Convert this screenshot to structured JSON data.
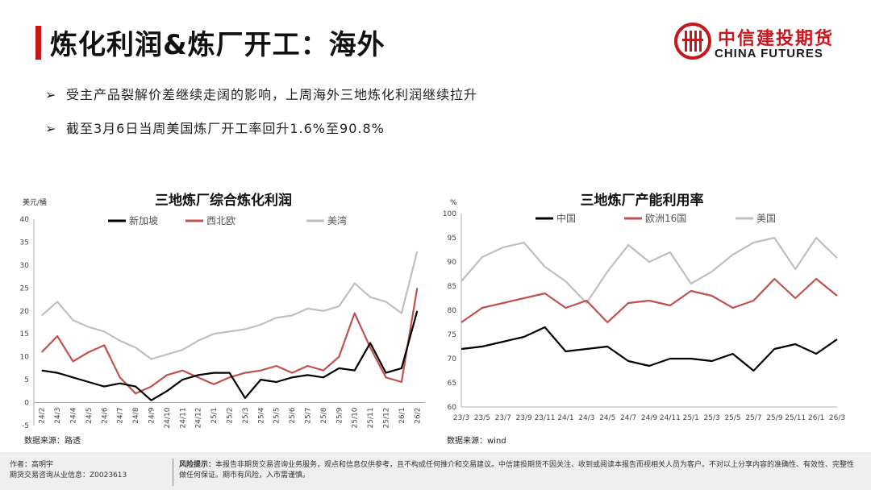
{
  "page": {
    "title": "炼化利润&炼厂开工：海外",
    "bullets": [
      "受主产品裂解价差继续走阔的影响，上周海外三地炼化利润继续拉升",
      "截至3月6日当周美国炼厂开工率回升1.6%至90.8%"
    ],
    "bullet_marker": "➢"
  },
  "logo": {
    "cn": "中信建投期货",
    "en": "CHINA FUTURES"
  },
  "footer": {
    "author": "作者：高明宇",
    "license": "期货交易咨询从业信息：Z0023613",
    "risk_label": "风险提示：",
    "risk_text": "本报告非期货交易咨询业务服务，观点和信息仅供参考，且不构成任何推介和交易建议。中信建投期货不因关注、收到或阅读本报告而视相关人员为客户。不对以上分享内容的准确性、有效性、完整性做任何保证。期市有风险，入市需谨慎。"
  },
  "colors": {
    "accent": "#c8161d",
    "black_series": "#000000",
    "red_series": "#c0504d",
    "gray_series": "#bfbfbf"
  },
  "chart_data": [
    {
      "type": "line",
      "title": "三地炼厂综合炼化利润",
      "ylabel": "美元/桶",
      "ylim": [
        -5,
        40
      ],
      "yticks": [
        -5,
        0,
        5,
        10,
        15,
        20,
        25,
        30,
        35,
        40
      ],
      "xlabels": [
        "24/2",
        "24/3",
        "24/4",
        "24/5",
        "24/6",
        "24/7",
        "24/8",
        "24/9",
        "24/10",
        "24/11",
        "24/12",
        "25/1",
        "25/2",
        "25/3",
        "25/4",
        "25/5",
        "25/6",
        "25/7",
        "25/8",
        "25/9",
        "25/10",
        "25/11",
        "25/12",
        "26/1",
        "26/2"
      ],
      "source": "数据来源：路透",
      "series": [
        {
          "name": "新加坡",
          "color": "#000000",
          "values": [
            7.0,
            6.5,
            5.5,
            4.5,
            3.5,
            4.2,
            3.5,
            0.5,
            2.5,
            5.0,
            6.0,
            6.5,
            6.5,
            1.0,
            5.0,
            4.5,
            5.5,
            6.0,
            5.5,
            7.5,
            7.0,
            13.0,
            6.5,
            7.5,
            20.0
          ]
        },
        {
          "name": "西北欧",
          "color": "#c0504d",
          "values": [
            11.0,
            14.5,
            9.0,
            11.0,
            12.5,
            5.5,
            2.0,
            3.5,
            6.0,
            7.0,
            5.5,
            4.0,
            5.5,
            6.5,
            7.0,
            8.0,
            6.5,
            8.0,
            7.0,
            10.0,
            19.5,
            12.0,
            5.5,
            4.5,
            25.0
          ]
        },
        {
          "name": "美湾",
          "color": "#bfbfbf",
          "values": [
            19.0,
            22.0,
            18.0,
            16.5,
            15.5,
            13.5,
            12.0,
            9.5,
            10.5,
            11.5,
            13.5,
            15.0,
            15.5,
            16.0,
            17.0,
            18.5,
            19.0,
            20.5,
            20.0,
            21.0,
            26.0,
            23.0,
            22.0,
            19.5,
            33.0
          ]
        }
      ]
    },
    {
      "type": "line",
      "title": "三地炼厂产能利用率",
      "ylabel": "%",
      "ylim": [
        60,
        100
      ],
      "yticks": [
        60,
        65,
        70,
        75,
        80,
        85,
        90,
        95,
        100
      ],
      "xlabels": [
        "23/3",
        "23/5",
        "23/7",
        "23/9",
        "23/11",
        "24/1",
        "24/3",
        "24/5",
        "24/7",
        "24/9",
        "24/11",
        "25/1",
        "25/3",
        "25/5",
        "25/7",
        "25/9",
        "25/11",
        "26/1",
        "26/3"
      ],
      "source": "数据来源：wind",
      "series": [
        {
          "name": "中国",
          "color": "#000000",
          "values": [
            72.0,
            72.5,
            73.5,
            74.5,
            76.5,
            71.5,
            72.0,
            72.5,
            69.5,
            68.5,
            70.0,
            70.0,
            69.5,
            71.0,
            67.5,
            72.0,
            73.0,
            71.0,
            74.0
          ]
        },
        {
          "name": "欧洲16国",
          "color": "#c0504d",
          "values": [
            77.5,
            80.5,
            81.5,
            82.5,
            83.5,
            80.5,
            82.0,
            77.5,
            81.5,
            82.0,
            81.0,
            84.0,
            83.0,
            80.5,
            82.0,
            86.5,
            82.5,
            86.5,
            83.0
          ]
        },
        {
          "name": "美国",
          "color": "#bfbfbf",
          "values": [
            86.0,
            91.0,
            93.0,
            94.0,
            89.0,
            86.0,
            81.5,
            88.0,
            93.5,
            90.0,
            92.0,
            85.5,
            88.0,
            91.5,
            94.0,
            95.0,
            88.5,
            95.0,
            90.8
          ]
        }
      ]
    }
  ]
}
